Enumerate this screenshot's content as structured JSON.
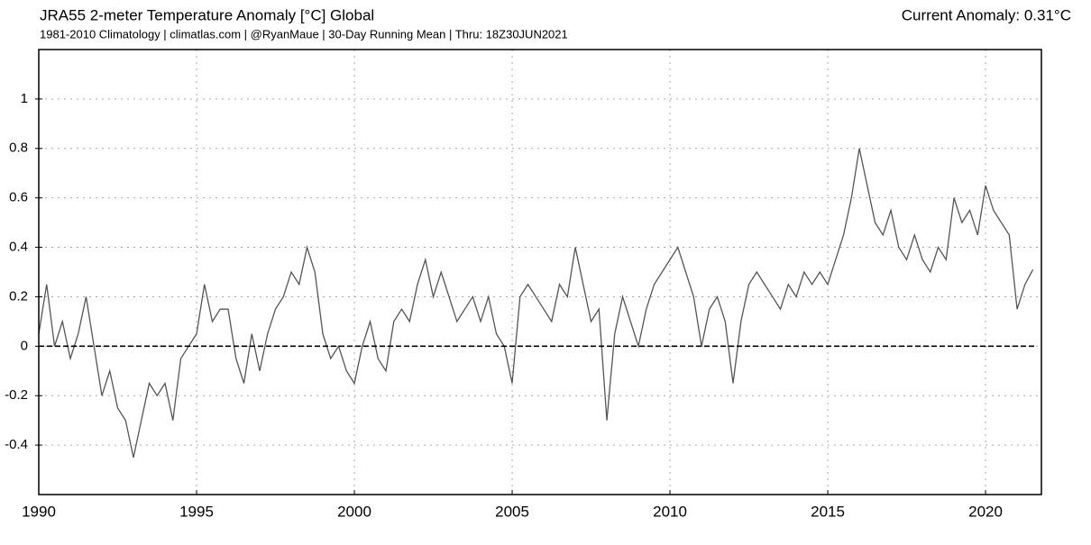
{
  "chart_data": {
    "type": "line",
    "title": "JRA55 2-meter Temperature Anomaly [°C] Global",
    "subtitle": "1981-2010 Climatology | climatlas.com | @RyanMaue | 30-Day Running Mean | Thru: 18Z30JUN2021",
    "annotation": "Current Anomaly: 0.31°C",
    "x": [
      1990,
      1990.25,
      1990.5,
      1990.75,
      1991,
      1991.25,
      1991.5,
      1991.75,
      1992,
      1992.25,
      1992.5,
      1992.75,
      1993,
      1993.25,
      1993.5,
      1993.75,
      1994,
      1994.25,
      1994.5,
      1994.75,
      1995,
      1995.25,
      1995.5,
      1995.75,
      1996,
      1996.25,
      1996.5,
      1996.75,
      1997,
      1997.25,
      1997.5,
      1997.75,
      1998,
      1998.25,
      1998.5,
      1998.75,
      1999,
      1999.25,
      1999.5,
      1999.75,
      2000,
      2000.25,
      2000.5,
      2000.75,
      2001,
      2001.25,
      2001.5,
      2001.75,
      2002,
      2002.25,
      2002.5,
      2002.75,
      2003,
      2003.25,
      2003.5,
      2003.75,
      2004,
      2004.25,
      2004.5,
      2004.75,
      2005,
      2005.25,
      2005.5,
      2005.75,
      2006,
      2006.25,
      2006.5,
      2006.75,
      2007,
      2007.25,
      2007.5,
      2007.75,
      2008,
      2008.25,
      2008.5,
      2008.75,
      2009,
      2009.25,
      2009.5,
      2009.75,
      2010,
      2010.25,
      2010.5,
      2010.75,
      2011,
      2011.25,
      2011.5,
      2011.75,
      2012,
      2012.25,
      2012.5,
      2012.75,
      2013,
      2013.25,
      2013.5,
      2013.75,
      2014,
      2014.25,
      2014.5,
      2014.75,
      2015,
      2015.25,
      2015.5,
      2015.75,
      2016,
      2016.25,
      2016.5,
      2016.75,
      2017,
      2017.25,
      2017.5,
      2017.75,
      2018,
      2018.25,
      2018.5,
      2018.75,
      2019,
      2019.25,
      2019.5,
      2019.75,
      2020,
      2020.25,
      2020.5,
      2020.75,
      2021,
      2021.25,
      2021.5
    ],
    "series": [
      {
        "name": "2-meter Temperature Anomaly",
        "color": "#555555",
        "values": [
          0.05,
          0.25,
          0.0,
          0.1,
          -0.05,
          0.05,
          0.2,
          0.0,
          -0.2,
          -0.1,
          -0.25,
          -0.3,
          -0.45,
          -0.3,
          -0.15,
          -0.2,
          -0.15,
          -0.3,
          -0.05,
          0.0,
          0.05,
          0.25,
          0.1,
          0.15,
          0.15,
          -0.05,
          -0.15,
          0.05,
          -0.1,
          0.05,
          0.15,
          0.2,
          0.3,
          0.25,
          0.4,
          0.3,
          0.05,
          -0.05,
          0.0,
          -0.1,
          -0.15,
          0.0,
          0.1,
          -0.05,
          -0.1,
          0.1,
          0.15,
          0.1,
          0.25,
          0.35,
          0.2,
          0.3,
          0.2,
          0.1,
          0.15,
          0.2,
          0.1,
          0.2,
          0.05,
          0.0,
          -0.15,
          0.2,
          0.25,
          0.2,
          0.15,
          0.1,
          0.25,
          0.2,
          0.4,
          0.25,
          0.1,
          0.15,
          -0.3,
          0.05,
          0.2,
          0.1,
          0.0,
          0.15,
          0.25,
          0.3,
          0.35,
          0.4,
          0.3,
          0.2,
          0.0,
          0.15,
          0.2,
          0.1,
          -0.15,
          0.1,
          0.25,
          0.3,
          0.25,
          0.2,
          0.15,
          0.25,
          0.2,
          0.3,
          0.25,
          0.3,
          0.25,
          0.35,
          0.45,
          0.6,
          0.8,
          0.65,
          0.5,
          0.45,
          0.55,
          0.4,
          0.35,
          0.45,
          0.35,
          0.3,
          0.4,
          0.35,
          0.6,
          0.5,
          0.55,
          0.45,
          0.65,
          0.55,
          0.5,
          0.45,
          0.15,
          0.25,
          0.31
        ]
      }
    ],
    "xlim": [
      1990,
      2021.77
    ],
    "xticks": [
      1990,
      1995,
      2000,
      2005,
      2010,
      2015,
      2020
    ],
    "ylim": [
      -0.6,
      1.2
    ],
    "yticks": [
      -0.4,
      -0.2,
      0,
      0.2,
      0.4,
      0.6,
      0.8,
      1
    ],
    "grid": true,
    "reference_line": 0
  }
}
